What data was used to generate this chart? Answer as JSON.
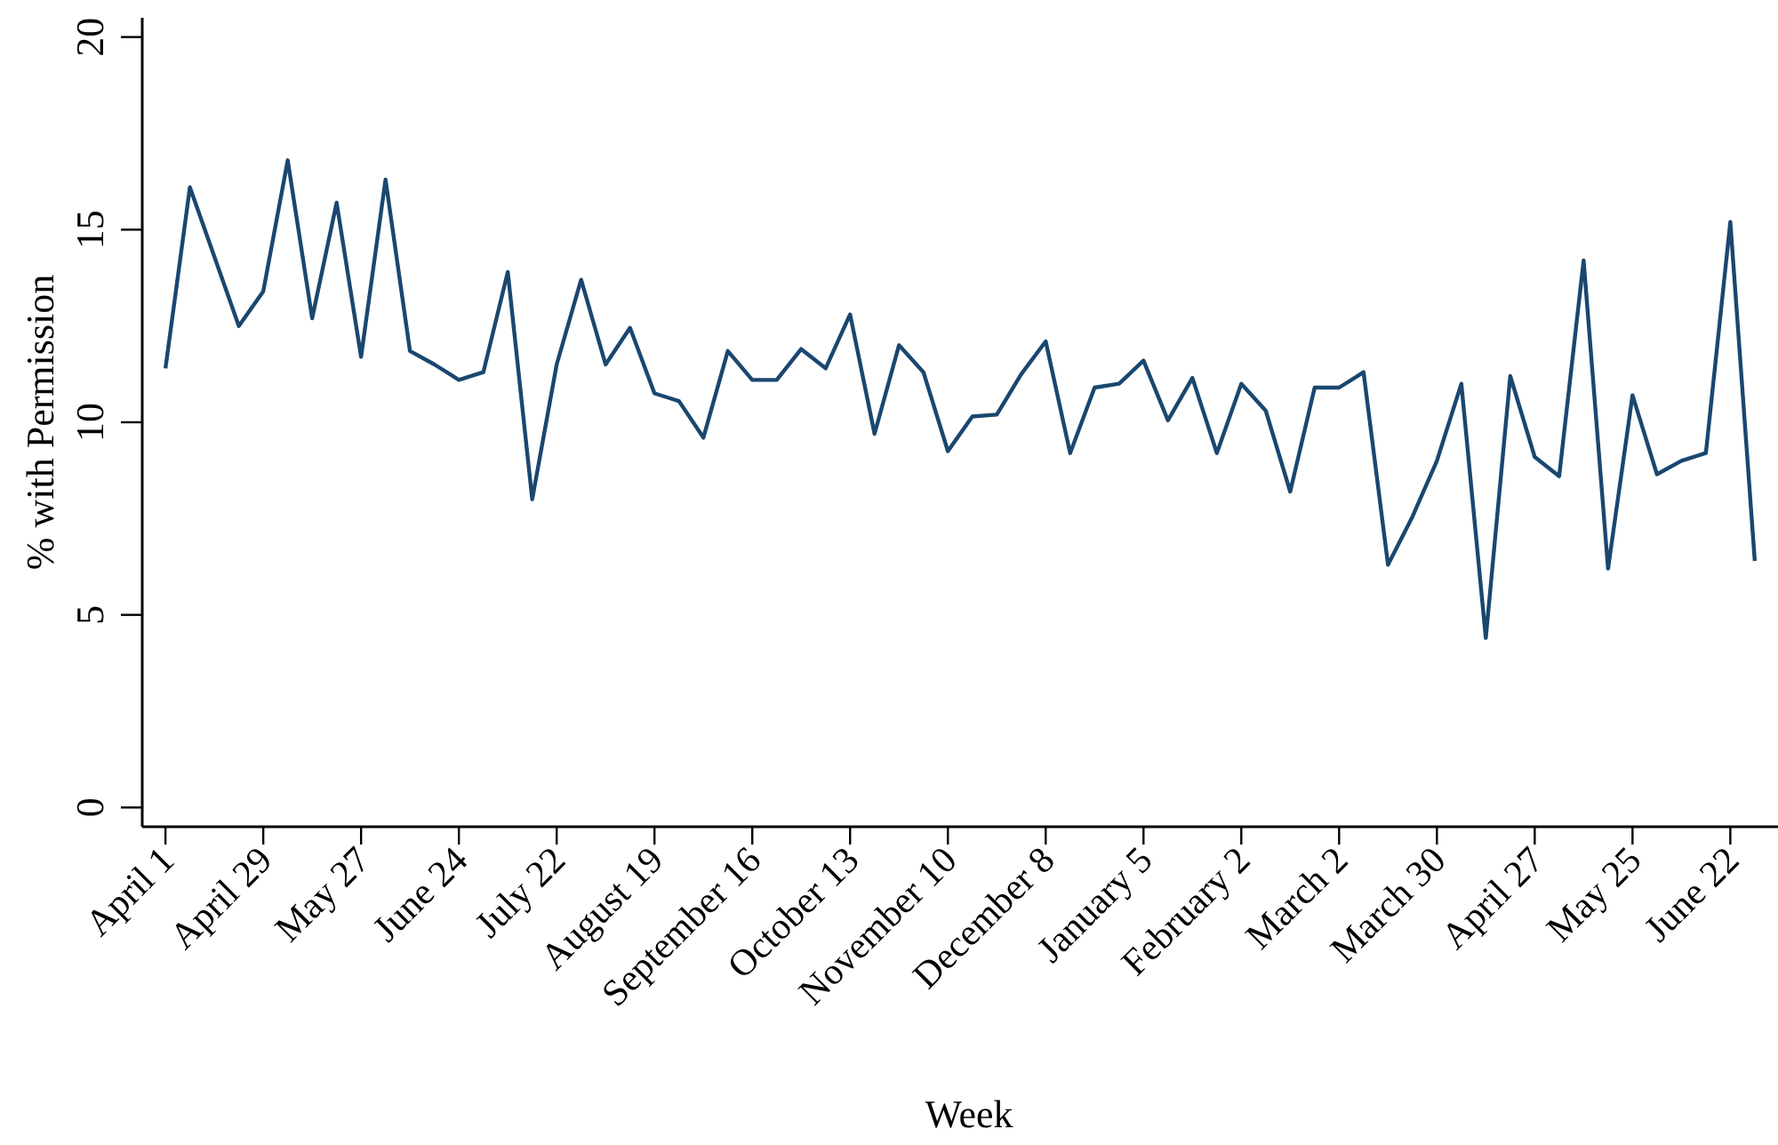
{
  "chart_data": {
    "type": "line",
    "xlabel": "Week",
    "ylabel": "% with Permission",
    "categories": [
      "April 1",
      null,
      null,
      null,
      "April 29",
      null,
      null,
      null,
      "May 27",
      null,
      null,
      null,
      "June 24",
      null,
      null,
      null,
      "July 22",
      null,
      null,
      null,
      "August 19",
      null,
      null,
      null,
      "September 16",
      null,
      null,
      null,
      "October 13",
      null,
      null,
      null,
      "November 10",
      null,
      null,
      null,
      "December 8",
      null,
      null,
      null,
      "January 5",
      null,
      null,
      null,
      "February 2",
      null,
      null,
      null,
      "March 2",
      null,
      null,
      null,
      "March 30",
      null,
      null,
      null,
      "April 27",
      null,
      null,
      null,
      "May 25",
      null,
      null,
      null,
      "June 22",
      null
    ],
    "series": [
      {
        "color": "#1a476f",
        "values": [
          11.4,
          16.1,
          14.3,
          12.5,
          13.4,
          16.8,
          12.7,
          15.7,
          11.7,
          16.3,
          11.85,
          11.5,
          11.1,
          11.3,
          13.9,
          8.0,
          11.5,
          13.7,
          11.5,
          12.45,
          10.75,
          10.55,
          9.6,
          11.85,
          11.1,
          11.1,
          11.9,
          11.4,
          12.8,
          9.7,
          12.0,
          11.3,
          9.25,
          10.15,
          10.2,
          11.25,
          12.1,
          9.2,
          10.9,
          11.0,
          11.6,
          10.05,
          11.15,
          9.2,
          11.0,
          10.3,
          8.2,
          10.9,
          10.9,
          11.3,
          6.3,
          7.55,
          9.0,
          11.0,
          4.4,
          11.2,
          9.1,
          8.6,
          14.2,
          6.2,
          10.7,
          8.65,
          9.0,
          9.2,
          15.2,
          6.4
        ]
      }
    ],
    "ylim": [
      -0.5,
      20.5
    ],
    "yticks": [
      0,
      5,
      10,
      15,
      20
    ],
    "grid": false,
    "marker": "none",
    "line_style": "solid"
  }
}
